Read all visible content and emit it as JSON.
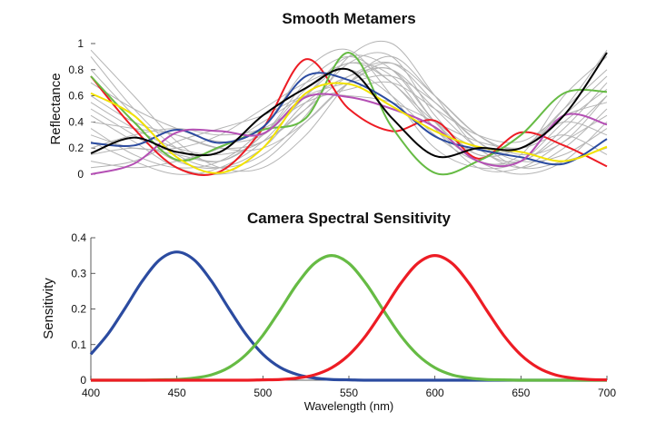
{
  "chart_data": [
    {
      "type": "line",
      "title": "Smooth Metamers",
      "xlabel": "",
      "ylabel": "Reflectance",
      "xlim": [
        400,
        700
      ],
      "ylim": [
        0,
        1
      ],
      "yticks": [
        "0",
        "0.2",
        "0.4",
        "0.6",
        "0.8",
        "1"
      ],
      "x": [
        400,
        425,
        450,
        475,
        500,
        525,
        550,
        575,
        600,
        625,
        650,
        675,
        700
      ],
      "grid": false,
      "background_series_color": "#b4b4b4",
      "background_series": [
        [
          0.9,
          0.5,
          0.2,
          0.1,
          0.3,
          0.7,
          0.9,
          0.7,
          0.4,
          0.2,
          0.2,
          0.5,
          0.8
        ],
        [
          0.5,
          0.3,
          0.1,
          0.05,
          0.2,
          0.55,
          0.75,
          0.8,
          0.5,
          0.2,
          0.05,
          0.2,
          0.5
        ],
        [
          0.3,
          0.2,
          0.2,
          0.3,
          0.5,
          0.7,
          0.8,
          0.6,
          0.3,
          0.1,
          0.1,
          0.3,
          0.6
        ],
        [
          0.6,
          0.4,
          0.3,
          0.2,
          0.25,
          0.5,
          0.85,
          0.9,
          0.45,
          0.15,
          0.2,
          0.4,
          0.3
        ],
        [
          0.1,
          0.05,
          0.1,
          0.2,
          0.4,
          0.6,
          0.7,
          0.75,
          0.55,
          0.25,
          0.05,
          0.1,
          0.2
        ],
        [
          0.8,
          0.45,
          0.15,
          0.05,
          0.15,
          0.45,
          0.9,
          1.0,
          0.6,
          0.2,
          0.1,
          0.35,
          0.7
        ],
        [
          0.2,
          0.3,
          0.35,
          0.3,
          0.35,
          0.55,
          0.65,
          0.7,
          0.5,
          0.3,
          0.25,
          0.45,
          0.55
        ],
        [
          0.45,
          0.25,
          0.05,
          0.0,
          0.1,
          0.4,
          0.7,
          0.8,
          0.4,
          0.1,
          0.15,
          0.6,
          0.9
        ],
        [
          0.7,
          0.5,
          0.35,
          0.25,
          0.3,
          0.6,
          0.85,
          0.7,
          0.35,
          0.1,
          0.0,
          0.1,
          0.4
        ],
        [
          0.05,
          0.1,
          0.25,
          0.35,
          0.45,
          0.6,
          0.6,
          0.55,
          0.4,
          0.25,
          0.2,
          0.3,
          0.15
        ],
        [
          0.35,
          0.15,
          0.05,
          0.1,
          0.35,
          0.8,
          0.95,
          0.6,
          0.2,
          0.05,
          0.1,
          0.4,
          0.65
        ],
        [
          0.55,
          0.35,
          0.2,
          0.15,
          0.25,
          0.5,
          0.75,
          0.85,
          0.55,
          0.25,
          0.1,
          0.15,
          0.35
        ],
        [
          0.95,
          0.6,
          0.25,
          0.05,
          0.05,
          0.3,
          0.7,
          0.9,
          0.6,
          0.3,
          0.2,
          0.5,
          0.95
        ],
        [
          0.15,
          0.2,
          0.15,
          0.1,
          0.3,
          0.65,
          0.85,
          0.75,
          0.35,
          0.05,
          0.05,
          0.25,
          0.45
        ],
        [
          0.4,
          0.35,
          0.3,
          0.2,
          0.2,
          0.4,
          0.7,
          0.85,
          0.6,
          0.3,
          0.15,
          0.25,
          0.6
        ],
        [
          0.25,
          0.1,
          0.0,
          0.05,
          0.25,
          0.6,
          0.9,
          0.8,
          0.4,
          0.15,
          0.2,
          0.45,
          0.75
        ]
      ],
      "series": [
        {
          "color": "#ed1c24",
          "values": [
            0.75,
            0.35,
            0.05,
            0.02,
            0.35,
            0.88,
            0.5,
            0.33,
            0.41,
            0.12,
            0.32,
            0.22,
            0.06
          ]
        },
        {
          "color": "#66bb44",
          "values": [
            0.75,
            0.4,
            0.11,
            0.21,
            0.34,
            0.43,
            0.93,
            0.36,
            0.01,
            0.1,
            0.3,
            0.62,
            0.63
          ]
        },
        {
          "color": "#2b4ba0",
          "values": [
            0.24,
            0.22,
            0.34,
            0.24,
            0.36,
            0.75,
            0.72,
            0.55,
            0.29,
            0.19,
            0.13,
            0.08,
            0.27
          ]
        },
        {
          "color": "#b44fb4",
          "values": [
            0.0,
            0.08,
            0.32,
            0.33,
            0.31,
            0.59,
            0.59,
            0.5,
            0.36,
            0.1,
            0.1,
            0.45,
            0.38
          ]
        },
        {
          "color": "#f2e200",
          "values": [
            0.62,
            0.45,
            0.13,
            0.01,
            0.2,
            0.62,
            0.69,
            0.52,
            0.33,
            0.21,
            0.17,
            0.1,
            0.21
          ]
        },
        {
          "color": "#000000",
          "values": [
            0.16,
            0.28,
            0.17,
            0.17,
            0.45,
            0.66,
            0.8,
            0.43,
            0.14,
            0.2,
            0.2,
            0.45,
            0.93
          ]
        }
      ]
    },
    {
      "type": "line",
      "title": "Camera Spectral Sensitivity",
      "xlabel": "Wavelength (nm)",
      "ylabel": "Sensitivity",
      "xlim": [
        400,
        700
      ],
      "ylim": [
        0,
        0.4
      ],
      "xticks": [
        "400",
        "450",
        "500",
        "550",
        "600",
        "650",
        "700"
      ],
      "yticks": [
        "0",
        "0.1",
        "0.2",
        "0.3",
        "0.4"
      ],
      "grid": false,
      "x": [
        400,
        410,
        420,
        430,
        440,
        450,
        460,
        470,
        480,
        490,
        500,
        510,
        520,
        530,
        540,
        550,
        560,
        570,
        580,
        590,
        600,
        610,
        620,
        630,
        640,
        650,
        660,
        670,
        680,
        690,
        700
      ],
      "series": [
        {
          "color": "#2b4ba0",
          "values": [
            0.073,
            0.13,
            0.203,
            0.279,
            0.338,
            0.36,
            0.338,
            0.279,
            0.203,
            0.13,
            0.073,
            0.036,
            0.016,
            0.006,
            0.002,
            0.001,
            0,
            0,
            0,
            0,
            0,
            0,
            0,
            0,
            0,
            0,
            0,
            0,
            0,
            0,
            0
          ]
        },
        {
          "color": "#66bb44",
          "values": [
            0,
            0,
            0,
            0,
            0.001,
            0.002,
            0.006,
            0.015,
            0.035,
            0.071,
            0.126,
            0.197,
            0.271,
            0.328,
            0.35,
            0.328,
            0.271,
            0.197,
            0.126,
            0.071,
            0.035,
            0.015,
            0.006,
            0.002,
            0.001,
            0,
            0,
            0,
            0,
            0,
            0
          ]
        },
        {
          "color": "#ed1c24",
          "values": [
            0,
            0,
            0,
            0,
            0,
            0,
            0,
            0,
            0,
            0,
            0.001,
            0.002,
            0.006,
            0.015,
            0.035,
            0.071,
            0.126,
            0.197,
            0.271,
            0.328,
            0.35,
            0.328,
            0.271,
            0.197,
            0.126,
            0.071,
            0.035,
            0.015,
            0.006,
            0.002,
            0.001
          ]
        }
      ]
    }
  ]
}
